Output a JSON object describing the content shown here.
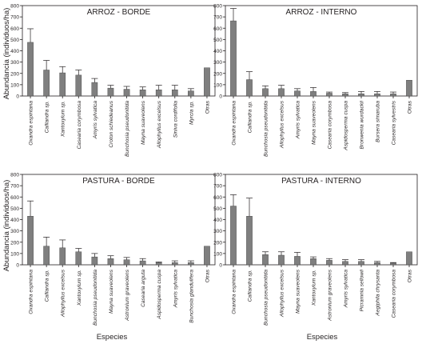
{
  "figure": {
    "ylabel": "Abundancia (individuos/ha)",
    "xlabel": "Especies"
  },
  "chart_data": [
    {
      "type": "bar",
      "title": "ARROZ - BORDE",
      "ylim": [
        0,
        800
      ],
      "yticks": [
        0,
        100,
        200,
        300,
        400,
        500,
        600,
        700,
        800
      ],
      "categories": [
        "Oxandra espintana",
        "Calliandra sp.",
        "Xantoxylum sp.",
        "Casearia corymbosa",
        "Amyris sylvatica",
        "Croton schiedeanus",
        "Bunchosia pseudonitida",
        "Mayna suaveolens",
        "Allophyllus excelsus",
        "Siniva cordifolia",
        "Myrcia sp.",
        "Otras"
      ],
      "italic": [
        true,
        true,
        true,
        true,
        true,
        true,
        true,
        true,
        true,
        true,
        true,
        false
      ],
      "values": [
        475,
        230,
        205,
        185,
        120,
        70,
        60,
        55,
        55,
        55,
        45,
        250
      ],
      "errors": [
        120,
        85,
        55,
        45,
        35,
        25,
        25,
        25,
        40,
        40,
        20,
        null
      ]
    },
    {
      "type": "bar",
      "title": "ARROZ - INTERNO",
      "ylim": [
        0,
        800
      ],
      "yticks": [
        0,
        100,
        200,
        300,
        400,
        500,
        600,
        700,
        800
      ],
      "categories": [
        "Oxandra espintana",
        "Calliandra sp.",
        "Bunchosia pseudonitida",
        "Allophyllus excelsus",
        "Amyris sylvatica",
        "Mayna suaveolens",
        "Casearia corymbosa",
        "Aspidosperma cuspa",
        "Bronwenia wurdackii",
        "Bursera simaruba",
        "Casearia sylvestris",
        "Otras"
      ],
      "italic": [
        true,
        true,
        true,
        true,
        true,
        true,
        true,
        true,
        true,
        true,
        true,
        false
      ],
      "values": [
        665,
        145,
        65,
        65,
        45,
        40,
        25,
        20,
        20,
        20,
        20,
        140
      ],
      "errors": [
        110,
        70,
        25,
        30,
        20,
        35,
        10,
        10,
        20,
        20,
        15,
        null
      ]
    },
    {
      "type": "bar",
      "title": "PASTURA - BORDE",
      "ylim": [
        0,
        800
      ],
      "yticks": [
        0,
        100,
        200,
        300,
        400,
        500,
        600,
        700,
        800
      ],
      "categories": [
        "Oxandra espintana",
        "Calliandra sp.",
        "Allophyllus excelsus",
        "Xantoxylum sp.",
        "Bunchosia pseudonitida",
        "Mayna suaveolens",
        "Astronium graveolens",
        "Casearia arguta",
        "Aspidosperma cuspa",
        "Amyris sylvatica",
        "Bunchosia glandulifera",
        "Otras"
      ],
      "italic": [
        true,
        true,
        true,
        true,
        true,
        true,
        true,
        true,
        true,
        true,
        true,
        false
      ],
      "values": [
        430,
        165,
        150,
        115,
        70,
        55,
        45,
        35,
        20,
        20,
        20,
        165
      ],
      "errors": [
        135,
        80,
        70,
        30,
        30,
        25,
        20,
        20,
        5,
        15,
        15,
        null
      ]
    },
    {
      "type": "bar",
      "title": "PASTURA - INTERNO",
      "ylim": [
        0,
        800
      ],
      "yticks": [
        0,
        100,
        200,
        300,
        400,
        500,
        600,
        700,
        800
      ],
      "categories": [
        "Oxandra espintana",
        "Calliandra sp.",
        "Bunchosia pseudonitida",
        "Allophyllus excelsus",
        "Mayna suaveolens",
        "Xantoxylum sp.",
        "Astronium graveolens",
        "Amyris sylvatica",
        "Picramnia sellowii",
        "Aegiphila chrysanta",
        "Casearia corymbosa",
        "Otras"
      ],
      "italic": [
        true,
        true,
        true,
        true,
        true,
        true,
        true,
        true,
        true,
        true,
        true,
        false
      ],
      "values": [
        520,
        430,
        90,
        85,
        75,
        55,
        40,
        30,
        30,
        20,
        15,
        115
      ],
      "errors": [
        100,
        160,
        25,
        30,
        35,
        15,
        15,
        15,
        15,
        10,
        5,
        null
      ]
    }
  ]
}
